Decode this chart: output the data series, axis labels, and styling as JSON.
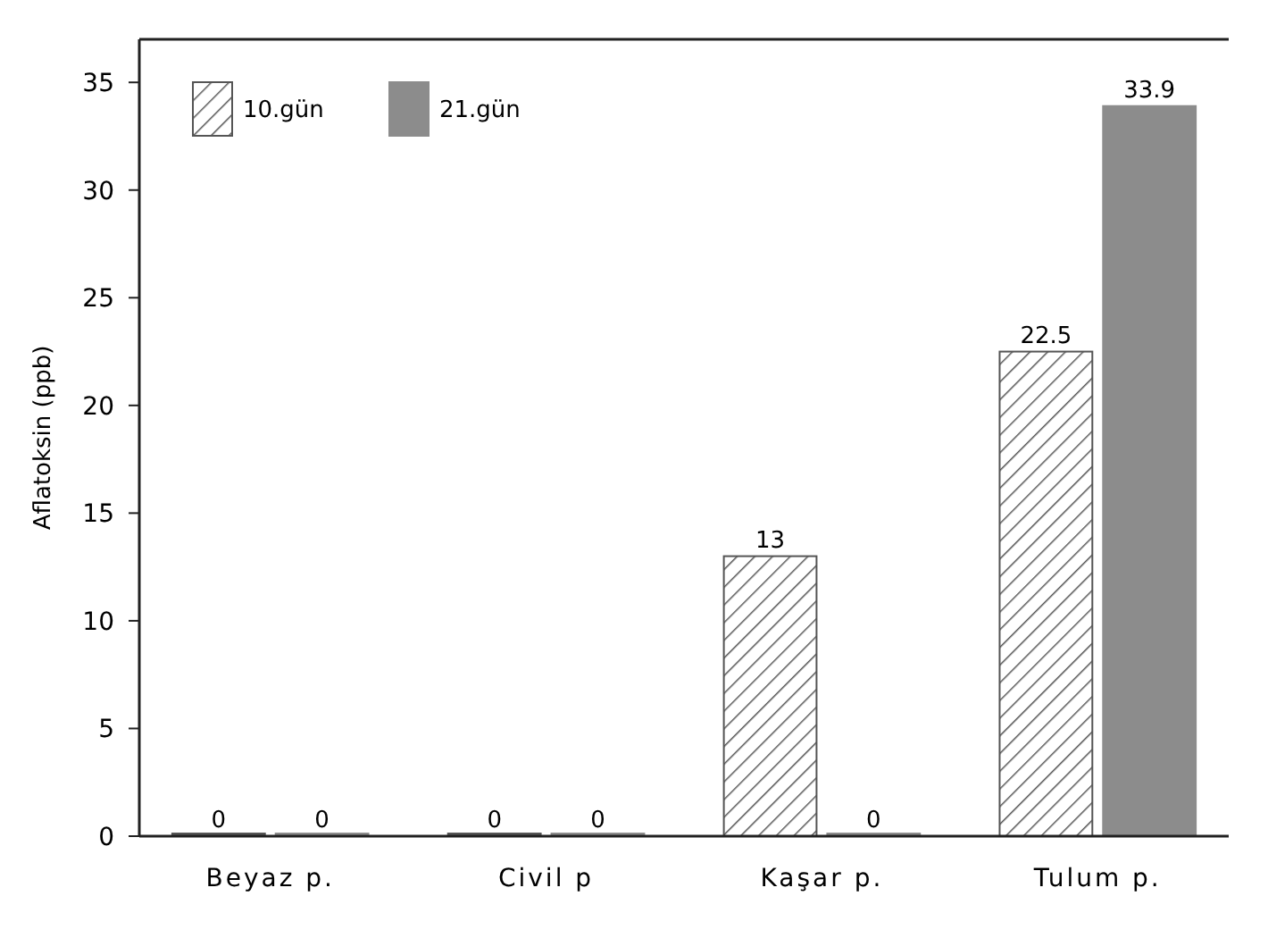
{
  "chart_data": {
    "type": "bar",
    "ylabel": "Aflatoksin (ppb)",
    "categories": [
      "Beyaz p.",
      "Civil p",
      "Kaşar p.",
      "Tulum p."
    ],
    "series": [
      {
        "name": "10.gün",
        "color": "#555555",
        "values": [
          0,
          0,
          13,
          22.5
        ]
      },
      {
        "name": "21.gün",
        "color": "#8c8c8c",
        "values": [
          0,
          0,
          0,
          33.9
        ]
      }
    ],
    "ylim": [
      0,
      37
    ],
    "yticks": [
      0,
      5,
      10,
      15,
      20,
      25,
      30,
      35
    ],
    "data_labels": true,
    "legend": "top left",
    "grid": false
  }
}
